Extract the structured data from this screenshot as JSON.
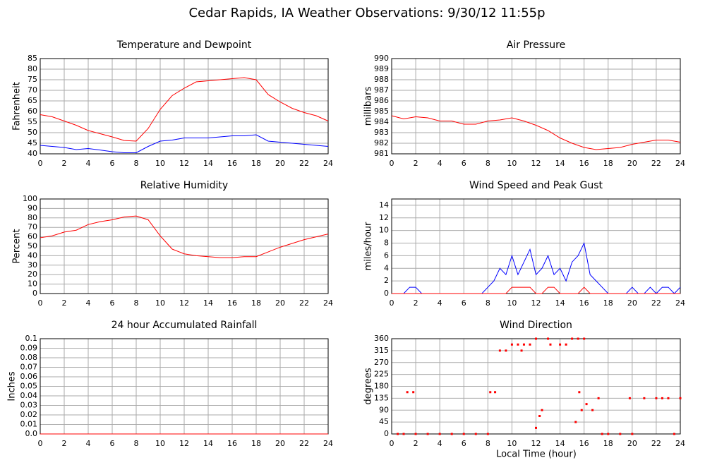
{
  "title": "Cedar Rapids, IA Weather Observations: 9/30/12 11:55p",
  "xlabel": "Local Time (hour)",
  "chart_data": [
    {
      "type": "line",
      "title": "Temperature and Dewpoint",
      "ylabel": "Fahrenheit",
      "grid": true,
      "x": [
        0,
        1,
        2,
        3,
        4,
        5,
        6,
        7,
        8,
        9,
        10,
        11,
        12,
        13,
        14,
        15,
        16,
        17,
        18,
        19,
        20,
        21,
        22,
        23,
        24
      ],
      "series": [
        {
          "color": "#ff0000",
          "values": [
            58.5,
            57.5,
            55.5,
            53.5,
            51,
            49.5,
            48,
            46.3,
            46,
            52,
            61,
            67.5,
            71,
            74,
            74.5,
            75,
            75.5,
            76,
            75,
            68,
            64.5,
            61.5,
            59.5,
            58,
            55.5
          ]
        },
        {
          "color": "#0000ff",
          "values": [
            44,
            43.5,
            43,
            42,
            42.5,
            41.8,
            41,
            40.5,
            40.5,
            43.5,
            46,
            46.5,
            47.5,
            47.5,
            47.5,
            48,
            48.5,
            48.5,
            49,
            46,
            45.5,
            45,
            44.5,
            44,
            43.5
          ]
        }
      ],
      "xlim": [
        0,
        24
      ],
      "xticks": [
        0,
        2,
        4,
        6,
        8,
        10,
        12,
        14,
        16,
        18,
        20,
        22,
        24
      ],
      "ylim": [
        40,
        85
      ],
      "yticks": [
        40,
        45,
        50,
        55,
        60,
        65,
        70,
        75,
        80,
        85
      ]
    },
    {
      "type": "line",
      "title": "Air Pressure",
      "ylabel": "millibars",
      "grid": true,
      "x": [
        0,
        1,
        2,
        3,
        4,
        5,
        6,
        7,
        8,
        9,
        10,
        11,
        12,
        13,
        14,
        15,
        16,
        17,
        18,
        19,
        20,
        21,
        22,
        23,
        24
      ],
      "series": [
        {
          "color": "#ff0000",
          "values": [
            984.6,
            984.3,
            984.5,
            984.4,
            984.1,
            984.1,
            983.8,
            983.8,
            984.1,
            984.2,
            984.4,
            984.1,
            983.7,
            983.2,
            982.5,
            982.0,
            981.6,
            981.4,
            981.5,
            981.6,
            981.9,
            982.1,
            982.3,
            982.3,
            982.1
          ]
        }
      ],
      "xlim": [
        0,
        24
      ],
      "xticks": [
        0,
        2,
        4,
        6,
        8,
        10,
        12,
        14,
        16,
        18,
        20,
        22,
        24
      ],
      "ylim": [
        981,
        990
      ],
      "yticks": [
        981,
        982,
        983,
        984,
        985,
        986,
        987,
        988,
        989,
        990
      ]
    },
    {
      "type": "line",
      "title": "Relative Humidity",
      "ylabel": "Percent",
      "grid": true,
      "x": [
        0,
        1,
        2,
        3,
        4,
        5,
        6,
        7,
        8,
        9,
        10,
        11,
        12,
        13,
        14,
        15,
        16,
        17,
        18,
        19,
        20,
        21,
        22,
        23,
        24
      ],
      "series": [
        {
          "color": "#ff0000",
          "values": [
            59,
            61,
            65,
            67,
            73,
            76,
            78,
            81,
            82,
            78,
            61,
            47,
            42,
            40,
            39,
            38,
            38,
            39,
            39,
            44,
            49,
            53,
            57,
            60,
            63
          ]
        }
      ],
      "xlim": [
        0,
        24
      ],
      "xticks": [
        0,
        2,
        4,
        6,
        8,
        10,
        12,
        14,
        16,
        18,
        20,
        22,
        24
      ],
      "ylim": [
        0,
        100
      ],
      "yticks": [
        0,
        10,
        20,
        30,
        40,
        50,
        60,
        70,
        80,
        90,
        100
      ]
    },
    {
      "type": "line",
      "title": "Wind Speed and Peak Gust",
      "ylabel": "miles/hour",
      "grid": true,
      "x": [
        0,
        0.5,
        1,
        1.5,
        2,
        2.5,
        3,
        3.5,
        4,
        4.5,
        5,
        5.5,
        6,
        6.5,
        7,
        7.5,
        8,
        8.5,
        9,
        9.5,
        10,
        10.5,
        11,
        11.5,
        12,
        12.5,
        13,
        13.5,
        14,
        14.5,
        15,
        15.5,
        16,
        16.5,
        17,
        17.5,
        18,
        18.5,
        19,
        19.5,
        20,
        20.5,
        21,
        21.5,
        22,
        22.5,
        23,
        23.5,
        24
      ],
      "series": [
        {
          "color": "#0000ff",
          "values": [
            0,
            0,
            0,
            1,
            1,
            0,
            0,
            0,
            0,
            0,
            0,
            0,
            0,
            0,
            0,
            0,
            1,
            2,
            4,
            3,
            6,
            3,
            5,
            7,
            3,
            4,
            6,
            3,
            4,
            2,
            5,
            6,
            8,
            3,
            2,
            1,
            0,
            0,
            0,
            0,
            1,
            0,
            0,
            1,
            0,
            1,
            1,
            0,
            1
          ]
        },
        {
          "color": "#ff0000",
          "values": [
            0,
            0,
            0,
            0,
            0,
            0,
            0,
            0,
            0,
            0,
            0,
            0,
            0,
            0,
            0,
            0,
            0,
            0,
            0,
            0,
            1,
            1,
            1,
            1,
            0,
            0,
            1,
            1,
            0,
            0,
            0,
            0,
            1,
            0,
            0,
            0,
            0,
            0,
            0,
            0,
            0,
            0,
            0,
            0,
            0,
            0,
            0,
            0,
            0
          ]
        }
      ],
      "xlim": [
        0,
        24
      ],
      "xticks": [
        0,
        2,
        4,
        6,
        8,
        10,
        12,
        14,
        16,
        18,
        20,
        22,
        24
      ],
      "ylim": [
        0,
        15
      ],
      "yticks": [
        0,
        2,
        4,
        6,
        8,
        10,
        12,
        14
      ]
    },
    {
      "type": "line",
      "title": "24 hour Accumulated Rainfall",
      "ylabel": "Inches",
      "grid": true,
      "x": [
        0,
        24
      ],
      "series": [
        {
          "color": "#ff0000",
          "values": [
            0,
            0
          ]
        }
      ],
      "xlim": [
        0,
        24
      ],
      "xticks": [
        0,
        2,
        4,
        6,
        8,
        10,
        12,
        14,
        16,
        18,
        20,
        22,
        24
      ],
      "ylim": [
        0,
        0.1
      ],
      "yticks": [
        {
          "value": 0,
          "label": "0.0"
        },
        0.01,
        0.02,
        0.03,
        0.04,
        0.05,
        0.06,
        0.07,
        0.08,
        0.09,
        0.1
      ]
    },
    {
      "type": "scatter",
      "title": "Wind Direction",
      "ylabel": "degrees",
      "grid": true,
      "color": "#ff0000",
      "x": [
        0.5,
        1,
        1.3,
        1.8,
        2,
        3,
        4,
        5,
        6,
        7,
        8,
        8.2,
        8.6,
        9,
        9.5,
        10,
        10.5,
        10.8,
        11,
        11.5,
        12,
        12.3,
        12.5,
        13,
        13.2,
        14,
        14.5,
        15,
        15.5,
        15.6,
        15.8,
        16,
        16.2,
        16.7,
        17.2,
        17.5,
        18,
        19,
        19.8,
        20,
        21,
        22,
        22.5,
        23,
        24,
        23.5,
        12,
        15.3
      ],
      "values": [
        0,
        0,
        158,
        158,
        0,
        0,
        0,
        0,
        0,
        0,
        0,
        158,
        158,
        315,
        315,
        338,
        338,
        315,
        338,
        338,
        360,
        68,
        90,
        360,
        338,
        338,
        338,
        360,
        360,
        158,
        90,
        360,
        113,
        90,
        135,
        0,
        0,
        0,
        135,
        0,
        135,
        135,
        135,
        135,
        135,
        0,
        23,
        45
      ],
      "xlim": [
        0,
        24
      ],
      "xticks": [
        0,
        2,
        4,
        6,
        8,
        10,
        12,
        14,
        16,
        18,
        20,
        22,
        24
      ],
      "ylim": [
        0,
        360
      ],
      "yticks": [
        0,
        45,
        90,
        135,
        180,
        225,
        270,
        315,
        360
      ]
    }
  ]
}
